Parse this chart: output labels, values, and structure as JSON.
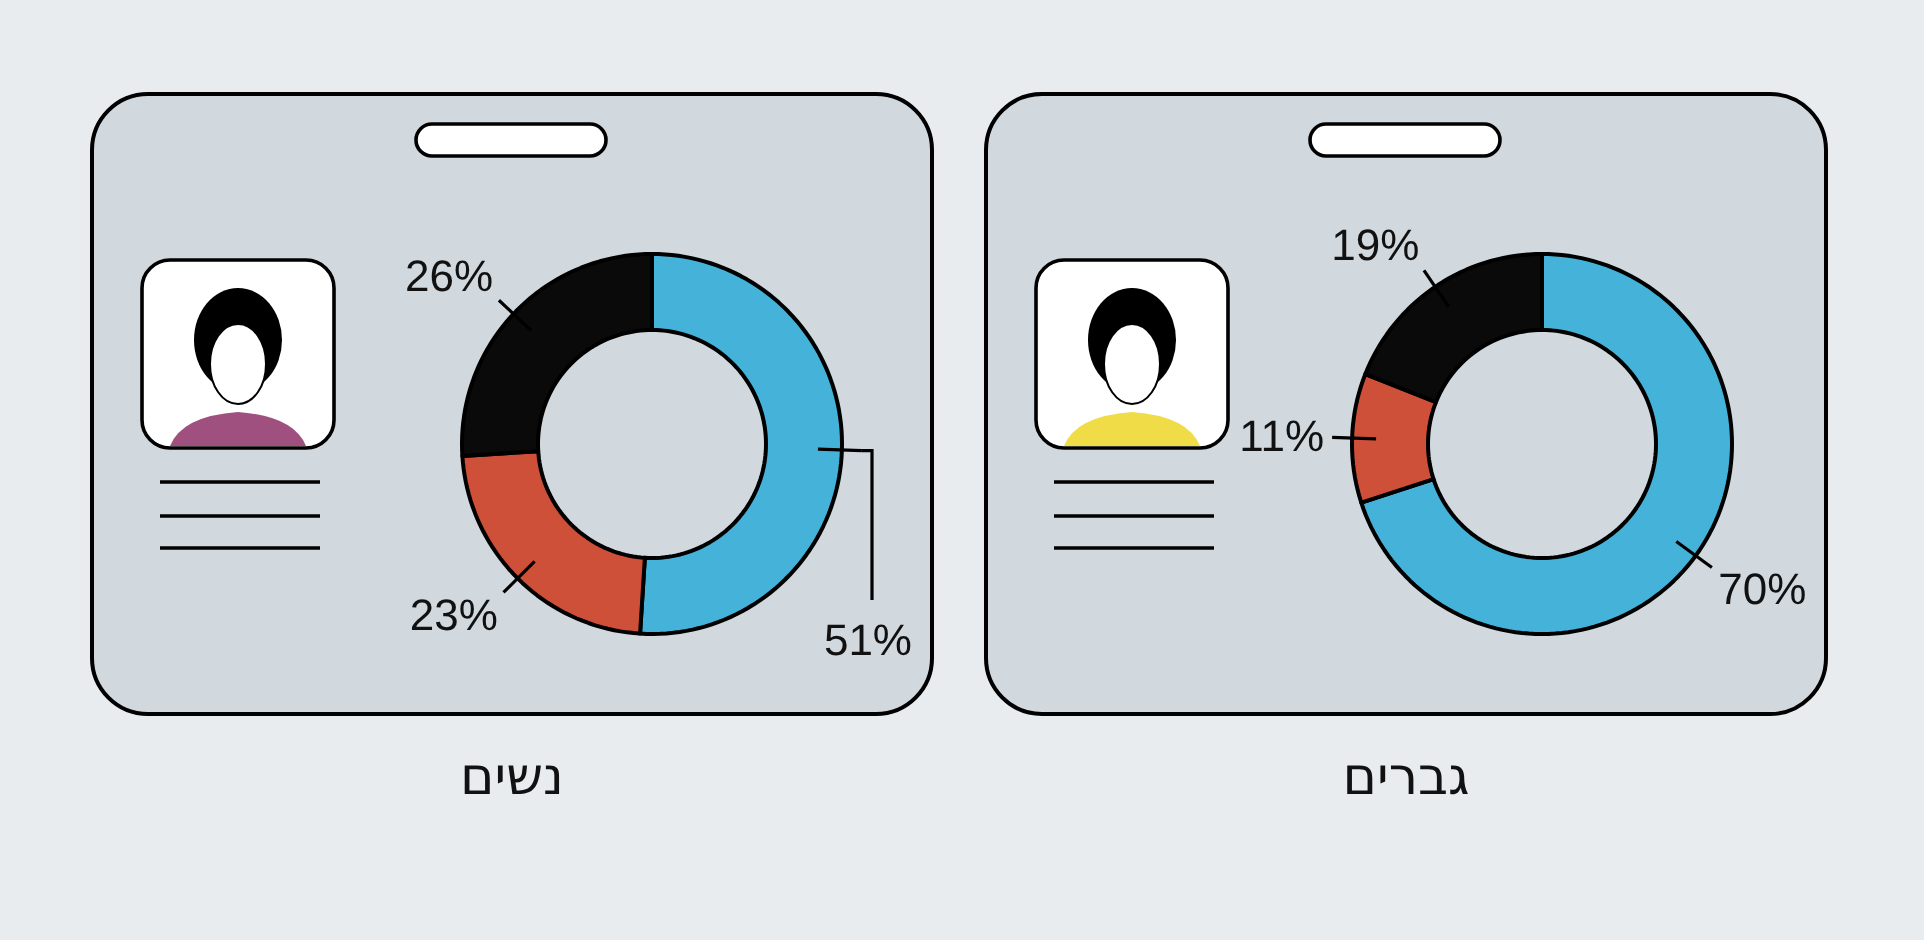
{
  "chart_data": [
    {
      "type": "donut",
      "title": "נשים",
      "categories": [
        null,
        null,
        null
      ],
      "values": [
        51,
        23,
        26
      ],
      "value_labels": [
        "51%",
        "23%",
        "26%"
      ],
      "colors": [
        "#45b3d9",
        "#cf5038",
        "#0a0a0a"
      ]
    },
    {
      "type": "donut",
      "title": "גברים",
      "categories": [
        null,
        null,
        null
      ],
      "values": [
        70,
        11,
        19
      ],
      "value_labels": [
        "70%",
        "11%",
        "19%"
      ],
      "colors": [
        "#45b3d9",
        "#cf5038",
        "#0a0a0a"
      ]
    }
  ]
}
